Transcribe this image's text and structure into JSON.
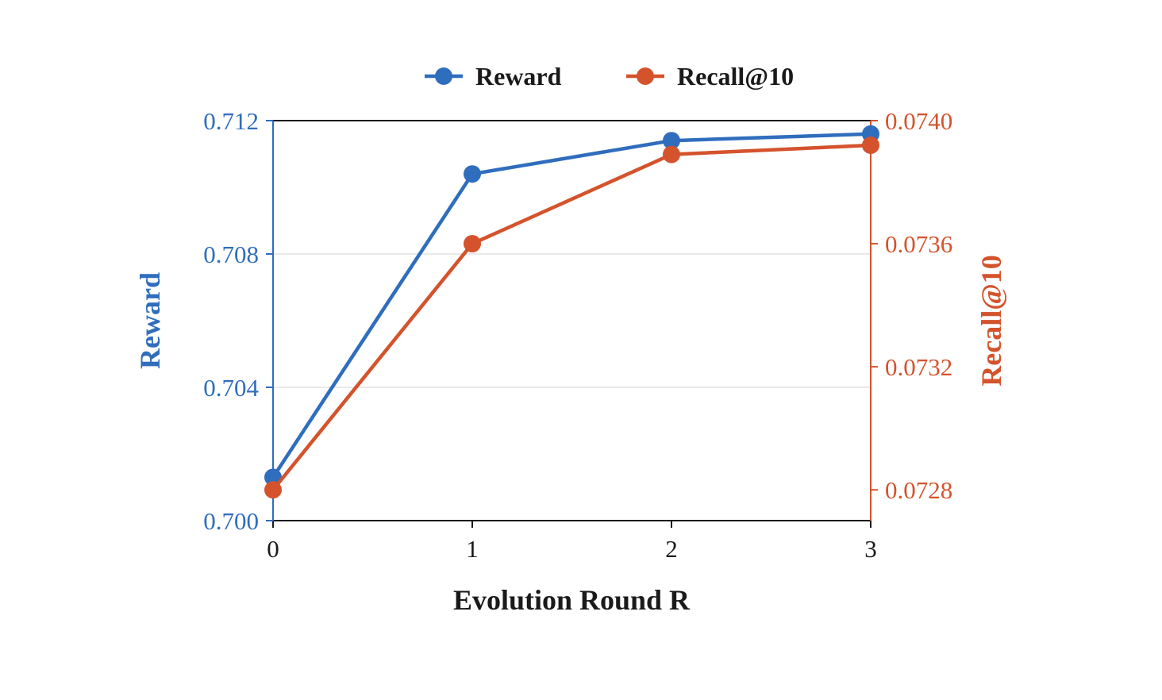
{
  "colors": {
    "reward": "#2f6dbd",
    "recall": "#d4532c",
    "axis": "#1a1a1a",
    "grid": "#dcdcdc"
  },
  "legend": {
    "items": [
      {
        "label": "Reward",
        "color": "#2f6dbd"
      },
      {
        "label": "Recall@10",
        "color": "#d4532c"
      }
    ],
    "placement": "top-center"
  },
  "chart_data": {
    "type": "line",
    "xlabel": "Evolution Round R",
    "x": [
      0,
      1,
      2,
      3
    ],
    "x_tick_labels": [
      "0",
      "1",
      "2",
      "3"
    ],
    "grid": "horizontal",
    "y_left": {
      "label": "Reward",
      "lim": [
        0.7,
        0.712
      ],
      "ticks": [
        0.7,
        0.704,
        0.708,
        0.712
      ],
      "tick_labels": [
        "0.700",
        "0.704",
        "0.708",
        "0.712"
      ]
    },
    "y_right": {
      "label": "Recall@10",
      "lim": [
        0.0727,
        0.074
      ],
      "ticks": [
        0.0728,
        0.0732,
        0.0736,
        0.074
      ],
      "tick_labels": [
        "0.0728",
        "0.0732",
        "0.0736",
        "0.0740"
      ]
    },
    "series": [
      {
        "name": "Reward",
        "axis": "left",
        "color": "#2f6dbd",
        "values": [
          0.7013,
          0.7104,
          0.7114,
          0.7116
        ]
      },
      {
        "name": "Recall@10",
        "axis": "right",
        "color": "#d4532c",
        "values": [
          0.0728,
          0.0736,
          0.07389,
          0.07392
        ]
      }
    ]
  }
}
